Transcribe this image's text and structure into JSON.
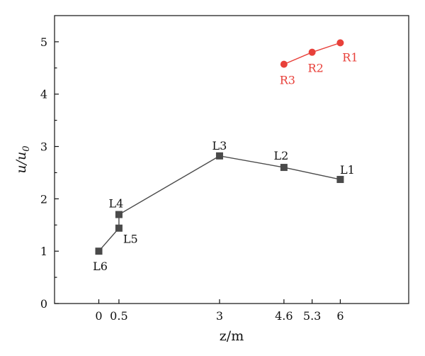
{
  "chart_data": {
    "type": "line",
    "xlabel": "z/m",
    "ylabel_main": "u/u",
    "ylabel_sub": "0",
    "xlim": [
      -1.1,
      7.7
    ],
    "ylim": [
      0,
      5.5
    ],
    "x_ticks": [
      0,
      0.5,
      3,
      4.6,
      5.3,
      6
    ],
    "x_tick_labels": [
      "0",
      "0.5",
      "3",
      "4.6",
      "5.3",
      "6"
    ],
    "y_ticks": [
      0,
      1,
      2,
      3,
      4,
      5
    ],
    "y_tick_labels": [
      "0",
      "1",
      "2",
      "3",
      "4",
      "5"
    ],
    "grid": false,
    "series": [
      {
        "marker": "square",
        "color": "#4a4a4a",
        "points": [
          {
            "label": "L6",
            "x": 0,
            "y": 1.0
          },
          {
            "label": "L5",
            "x": 0.5,
            "y": 1.44
          },
          {
            "label": "L4",
            "x": 0.5,
            "y": 1.7
          },
          {
            "label": "L3",
            "x": 3,
            "y": 2.82
          },
          {
            "label": "L2",
            "x": 4.6,
            "y": 2.6
          },
          {
            "label": "L1",
            "x": 6,
            "y": 2.37
          }
        ]
      },
      {
        "marker": "circle",
        "color": "#e8403a",
        "points": [
          {
            "label": "R3",
            "x": 4.6,
            "y": 4.57
          },
          {
            "label": "R2",
            "x": 5.3,
            "y": 4.8
          },
          {
            "label": "R1",
            "x": 6,
            "y": 4.98
          }
        ]
      }
    ]
  }
}
